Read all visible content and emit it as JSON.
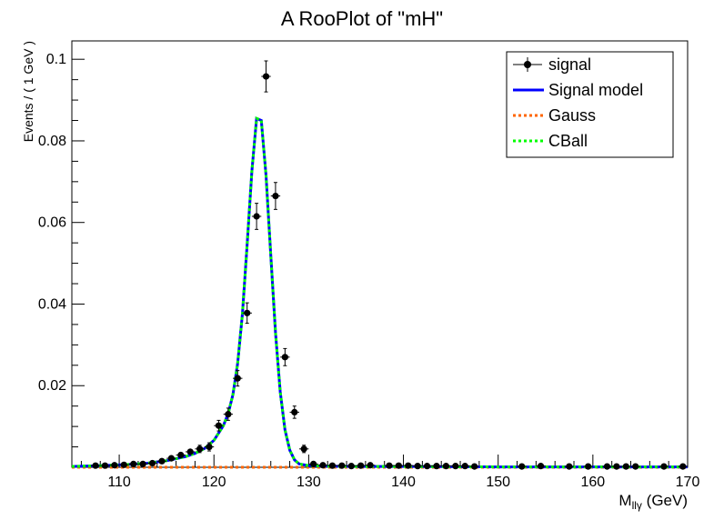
{
  "chart_data": {
    "type": "scatter",
    "title": "A RooPlot of \"mH\"",
    "xlabel": "M_{llγ} (GeV)",
    "xlabel_main": "M",
    "xlabel_sub": "llγ",
    "xlabel_unit": " (GeV)",
    "ylabel": "Events / ( 1 GeV )",
    "xlim": [
      105,
      170
    ],
    "ylim": [
      0,
      0.1045
    ],
    "x_ticks": [
      110,
      120,
      130,
      140,
      150,
      160,
      170
    ],
    "x_tick_labels": [
      "110",
      "120",
      "130",
      "140",
      "150",
      "160",
      "170"
    ],
    "y_ticks": [
      0.02,
      0.04,
      0.06,
      0.08,
      0.1
    ],
    "y_tick_labels": [
      "0.02",
      "0.04",
      "0.06",
      "0.08",
      "0.1"
    ],
    "grid": false,
    "legend_placement": "top-right",
    "legend": [
      {
        "label": "signal",
        "style": "marker",
        "color": "#000000"
      },
      {
        "label": "Signal model",
        "style": "solid",
        "color": "#0000ff"
      },
      {
        "label": "Gauss",
        "style": "dotted",
        "color": "#ff6600"
      },
      {
        "label": "CBall",
        "style": "dotted",
        "color": "#00ff00"
      }
    ],
    "series": [
      {
        "name": "signal",
        "kind": "points",
        "color": "#000000",
        "x": [
          107.5,
          108.5,
          109.5,
          110.5,
          111.5,
          112.5,
          113.5,
          114.5,
          115.5,
          116.5,
          117.5,
          118.5,
          119.5,
          120.5,
          121.5,
          122.5,
          123.5,
          124.5,
          125.5,
          126.5,
          127.5,
          128.5,
          129.5,
          130.5,
          131.5,
          132.5,
          133.5,
          134.5,
          135.5,
          136.5,
          138.5,
          139.5,
          140.5,
          141.5,
          142.5,
          143.5,
          144.5,
          145.5,
          146.5,
          147.5,
          152.5,
          154.5,
          157.5,
          159.5,
          161.5,
          162.5,
          163.5,
          164.5,
          167.5,
          169.5
        ],
        "y": [
          0.0004,
          0.0004,
          0.0005,
          0.0006,
          0.0008,
          0.0008,
          0.001,
          0.0015,
          0.0022,
          0.003,
          0.0038,
          0.0045,
          0.005,
          0.0102,
          0.013,
          0.0218,
          0.0378,
          0.0615,
          0.0958,
          0.0665,
          0.027,
          0.0135,
          0.0045,
          0.0008,
          0.0005,
          0.0004,
          0.0004,
          0.0003,
          0.0004,
          0.0005,
          0.0004,
          0.0004,
          0.0004,
          0.0003,
          0.0003,
          0.0003,
          0.0003,
          0.0003,
          0.0003,
          0.0002,
          0.0002,
          0.0003,
          0.0002,
          0.0002,
          0.0002,
          0.0002,
          0.0002,
          0.0002,
          0.0002,
          0.0002
        ],
        "yerr": [
          0.0003,
          0.0003,
          0.0003,
          0.0003,
          0.0004,
          0.0004,
          0.0004,
          0.0005,
          0.0006,
          0.0007,
          0.0008,
          0.0009,
          0.001,
          0.0013,
          0.0015,
          0.0019,
          0.0025,
          0.0032,
          0.0038,
          0.0033,
          0.0021,
          0.0015,
          0.0009,
          0.0004,
          0.0003,
          0.0003,
          0.0003,
          0.0003,
          0.0003,
          0.0003,
          0.0003,
          0.0003,
          0.0003,
          0.0003,
          0.0003,
          0.0003,
          0.0003,
          0.0003,
          0.0003,
          0.0002,
          0.0002,
          0.0003,
          0.0002,
          0.0002,
          0.0002,
          0.0002,
          0.0002,
          0.0002,
          0.0002,
          0.0002
        ]
      },
      {
        "name": "Signal model",
        "kind": "line",
        "color": "#0000ff",
        "x": [
          105,
          108,
          111,
          113,
          115,
          117,
          118,
          119,
          120,
          121,
          121.5,
          122,
          122.5,
          123,
          123.5,
          124,
          124.5,
          125,
          125.5,
          126,
          126.5,
          127,
          127.5,
          128,
          128.5,
          129,
          130,
          132,
          135,
          140,
          150,
          160,
          170
        ],
        "y": [
          0.0002,
          0.0004,
          0.0007,
          0.001,
          0.0016,
          0.0026,
          0.0034,
          0.0046,
          0.0066,
          0.0102,
          0.0132,
          0.0178,
          0.0255,
          0.0375,
          0.0545,
          0.0725,
          0.0855,
          0.085,
          0.0715,
          0.052,
          0.033,
          0.0185,
          0.0092,
          0.0042,
          0.0018,
          0.0008,
          0.0004,
          0.0003,
          0.0002,
          0.0002,
          0.0001,
          0.0001,
          0.0001
        ]
      },
      {
        "name": "Gauss",
        "kind": "line",
        "color": "#ff6600",
        "x": [
          105,
          110,
          115,
          120,
          122,
          124,
          124.6,
          126,
          128,
          130,
          135,
          140,
          150,
          160,
          170
        ],
        "y": [
          0,
          0,
          0,
          0,
          0,
          0,
          0,
          0,
          0,
          0,
          0,
          0,
          0,
          0,
          0
        ]
      },
      {
        "name": "CBall",
        "kind": "line",
        "color": "#00ff00",
        "x": [
          105,
          108,
          111,
          113,
          115,
          117,
          118,
          119,
          120,
          121,
          121.5,
          122,
          122.5,
          123,
          123.5,
          124,
          124.5,
          125,
          125.5,
          126,
          126.5,
          127,
          127.5,
          128,
          128.5,
          129,
          130,
          132,
          135,
          140,
          150,
          160,
          170
        ],
        "y": [
          0.0002,
          0.0004,
          0.0007,
          0.001,
          0.0016,
          0.0026,
          0.0034,
          0.0046,
          0.0066,
          0.0102,
          0.0132,
          0.0178,
          0.0255,
          0.0375,
          0.0545,
          0.0725,
          0.0855,
          0.085,
          0.0715,
          0.052,
          0.033,
          0.0185,
          0.0092,
          0.0042,
          0.0018,
          0.0008,
          0.0004,
          0.0003,
          0.0002,
          0.0002,
          0.0001,
          0.0001,
          0.0001
        ]
      }
    ]
  }
}
